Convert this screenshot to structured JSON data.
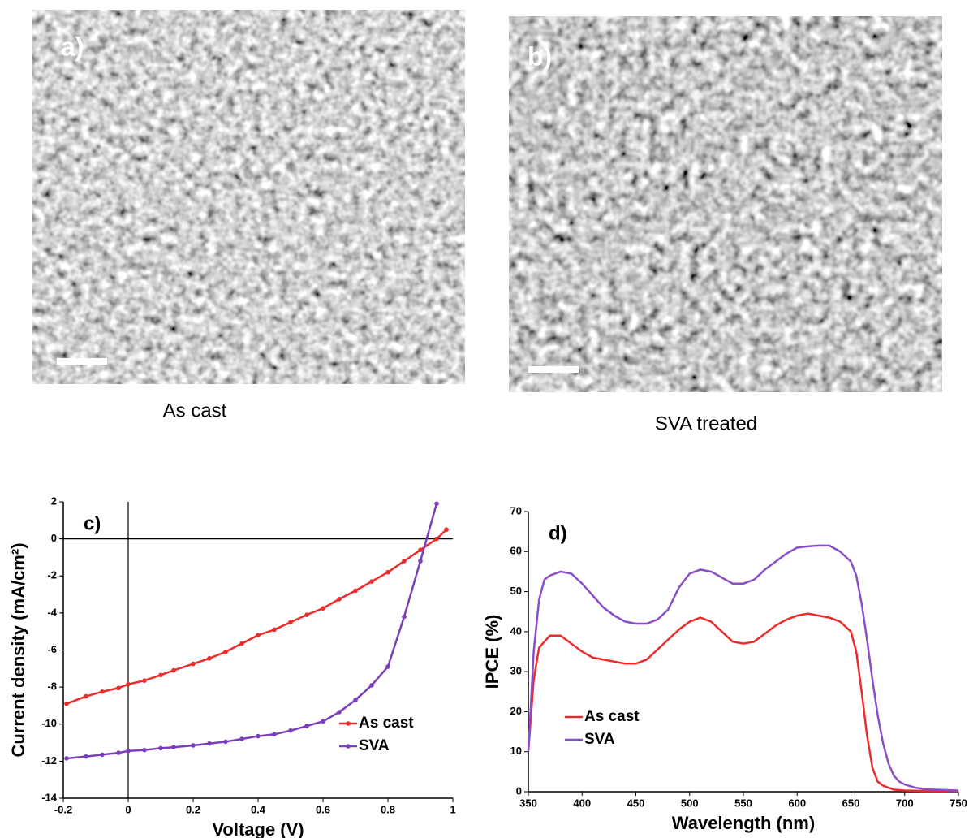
{
  "images": [
    {
      "label": "a)",
      "caption": "As cast"
    },
    {
      "label": "b)",
      "caption": "SVA treated"
    }
  ],
  "chart_data": [
    {
      "type": "line",
      "panel_label": "c)",
      "x_label": "Voltage (V)",
      "y_label": "Current density (mA/cm²)",
      "xlim": [
        -0.2,
        1
      ],
      "xticks": [
        -0.2,
        0,
        0.2,
        0.4,
        0.6,
        0.8,
        1
      ],
      "ylim": [
        -14,
        2
      ],
      "yticks": [
        -14,
        -12,
        -10,
        -8,
        -6,
        -4,
        -2,
        0,
        2
      ],
      "markers": true,
      "legend": "lower right",
      "series": [
        {
          "name": "As cast",
          "color": "#ee2b2b",
          "x": [
            -0.19,
            -0.13,
            -0.08,
            -0.03,
            0,
            0.05,
            0.1,
            0.14,
            0.2,
            0.25,
            0.3,
            0.35,
            0.4,
            0.45,
            0.5,
            0.55,
            0.6,
            0.65,
            0.7,
            0.75,
            0.8,
            0.85,
            0.9,
            0.95,
            0.98
          ],
          "values": [
            -8.9,
            -8.5,
            -8.25,
            -8.05,
            -7.85,
            -7.65,
            -7.35,
            -7.1,
            -6.75,
            -6.45,
            -6.1,
            -5.65,
            -5.2,
            -4.9,
            -4.5,
            -4.1,
            -3.75,
            -3.25,
            -2.8,
            -2.3,
            -1.8,
            -1.2,
            -0.6,
            0.0,
            0.5
          ]
        },
        {
          "name": "SVA",
          "color": "#7a3fb8",
          "x": [
            -0.19,
            -0.13,
            -0.08,
            -0.03,
            0,
            0.05,
            0.1,
            0.14,
            0.2,
            0.25,
            0.3,
            0.35,
            0.4,
            0.45,
            0.5,
            0.55,
            0.6,
            0.65,
            0.7,
            0.75,
            0.8,
            0.85,
            0.9,
            0.95
          ],
          "values": [
            -11.85,
            -11.75,
            -11.65,
            -11.55,
            -11.45,
            -11.4,
            -11.3,
            -11.25,
            -11.15,
            -11.05,
            -10.95,
            -10.8,
            -10.65,
            -10.55,
            -10.35,
            -10.1,
            -9.85,
            -9.35,
            -8.7,
            -7.9,
            -6.9,
            -4.2,
            -1.2,
            1.9
          ]
        }
      ]
    },
    {
      "type": "line",
      "panel_label": "d)",
      "x_label": "Wavelength (nm)",
      "y_label": "IPCE (%)",
      "xlim": [
        350,
        750
      ],
      "xticks": [
        350,
        400,
        450,
        500,
        550,
        600,
        650,
        700,
        750
      ],
      "ylim": [
        0,
        70
      ],
      "yticks": [
        0,
        10,
        20,
        30,
        40,
        50,
        60,
        70
      ],
      "markers": false,
      "legend": "lower left",
      "series": [
        {
          "name": "As cast",
          "color": "#ee2b2b",
          "x": [
            350,
            355,
            360,
            370,
            380,
            390,
            400,
            410,
            420,
            430,
            440,
            450,
            460,
            470,
            480,
            490,
            500,
            510,
            520,
            530,
            540,
            550,
            560,
            570,
            580,
            590,
            600,
            610,
            620,
            630,
            640,
            650,
            655,
            660,
            665,
            670,
            675,
            680,
            690,
            700,
            720,
            750
          ],
          "values": [
            10,
            28,
            36,
            39,
            39,
            37,
            35,
            33.5,
            33,
            32.5,
            32,
            32,
            33,
            35.5,
            38,
            40.5,
            42.5,
            43.5,
            42.5,
            40,
            37.5,
            37,
            37.5,
            39.5,
            41.5,
            43,
            44,
            44.5,
            44,
            43.5,
            42.5,
            40,
            35,
            25,
            14,
            6,
            2.5,
            1.5,
            0.5,
            0.3,
            0.2,
            0.2
          ]
        },
        {
          "name": "SVA",
          "color": "#8a4fc8",
          "x": [
            350,
            355,
            360,
            365,
            370,
            380,
            390,
            400,
            410,
            420,
            430,
            440,
            450,
            460,
            470,
            480,
            490,
            500,
            510,
            520,
            530,
            540,
            550,
            560,
            570,
            580,
            590,
            600,
            610,
            620,
            630,
            640,
            650,
            655,
            660,
            665,
            670,
            675,
            680,
            685,
            690,
            695,
            700,
            710,
            720,
            750
          ],
          "values": [
            10,
            35,
            48,
            53,
            54,
            55,
            54.5,
            52,
            49,
            46,
            44,
            42.5,
            42,
            42,
            43,
            45.5,
            51,
            54.5,
            55.5,
            55,
            53.5,
            52,
            52,
            53,
            55.5,
            57.5,
            59.5,
            61,
            61.3,
            61.5,
            61.5,
            60,
            57.5,
            54,
            47,
            38,
            28,
            19,
            12,
            7,
            4,
            2.5,
            1.8,
            1,
            0.6,
            0.3
          ]
        }
      ]
    }
  ]
}
